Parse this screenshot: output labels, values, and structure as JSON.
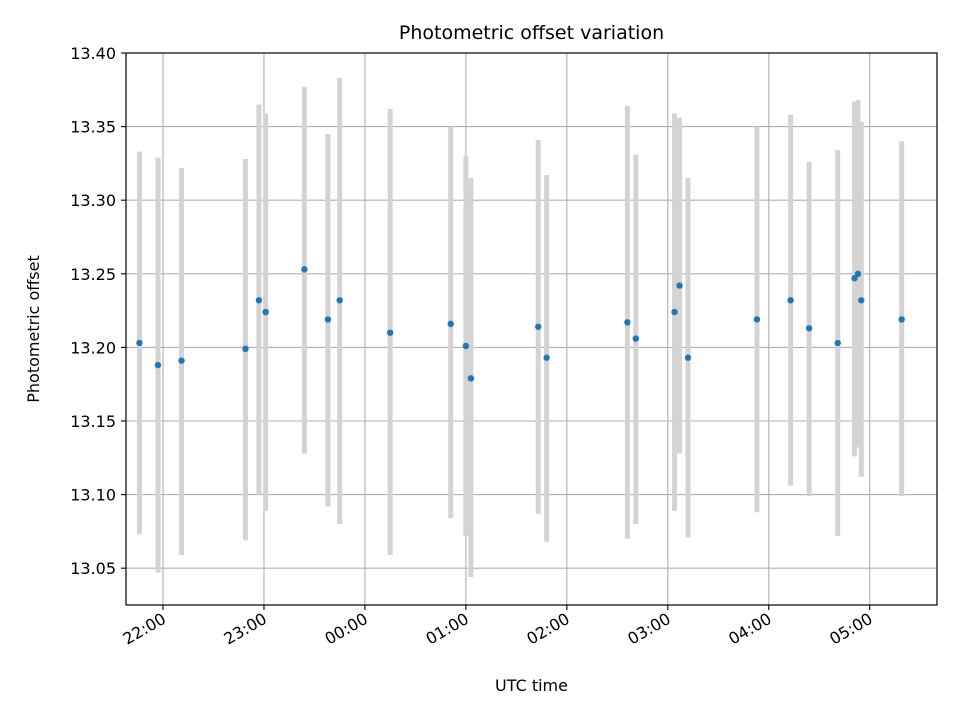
{
  "chart_data": {
    "type": "scatter",
    "title": "Photometric offset variation",
    "xlabel": "UTC time",
    "ylabel": "Photometric offset",
    "x_is_time": true,
    "xlim": [
      "21:38",
      "05:40"
    ],
    "ylim": [
      13.025,
      13.4
    ],
    "xticks": [
      "22:00",
      "23:00",
      "00:00",
      "01:00",
      "02:00",
      "03:00",
      "04:00",
      "05:00"
    ],
    "yticks": [
      "13.05",
      "13.10",
      "13.15",
      "13.20",
      "13.25",
      "13.30",
      "13.35",
      "13.40"
    ],
    "grid": true,
    "colors": {
      "point": "#1f77b4",
      "errorbar": "#d3d3d3",
      "grid": "#b0b0b0"
    },
    "points": [
      {
        "x": "21:46",
        "y": 13.203,
        "lo": 13.073,
        "hi": 13.333
      },
      {
        "x": "21:57",
        "y": 13.188,
        "lo": 13.047,
        "hi": 13.329
      },
      {
        "x": "22:11",
        "y": 13.191,
        "lo": 13.059,
        "hi": 13.322
      },
      {
        "x": "22:49",
        "y": 13.199,
        "lo": 13.069,
        "hi": 13.328
      },
      {
        "x": "22:57",
        "y": 13.232,
        "lo": 13.1,
        "hi": 13.365
      },
      {
        "x": "23:01",
        "y": 13.224,
        "lo": 13.089,
        "hi": 13.359
      },
      {
        "x": "23:24",
        "y": 13.253,
        "lo": 13.128,
        "hi": 13.377
      },
      {
        "x": "23:38",
        "y": 13.219,
        "lo": 13.092,
        "hi": 13.345
      },
      {
        "x": "23:45",
        "y": 13.232,
        "lo": 13.08,
        "hi": 13.383
      },
      {
        "x": "00:15",
        "y": 13.21,
        "lo": 13.059,
        "hi": 13.362
      },
      {
        "x": "00:51",
        "y": 13.216,
        "lo": 13.084,
        "hi": 13.35
      },
      {
        "x": "01:00",
        "y": 13.201,
        "lo": 13.072,
        "hi": 13.33
      },
      {
        "x": "01:03",
        "y": 13.179,
        "lo": 13.044,
        "hi": 13.315
      },
      {
        "x": "01:43",
        "y": 13.214,
        "lo": 13.087,
        "hi": 13.341
      },
      {
        "x": "01:48",
        "y": 13.193,
        "lo": 13.068,
        "hi": 13.317
      },
      {
        "x": "02:36",
        "y": 13.217,
        "lo": 13.07,
        "hi": 13.364
      },
      {
        "x": "02:41",
        "y": 13.206,
        "lo": 13.08,
        "hi": 13.331
      },
      {
        "x": "03:04",
        "y": 13.224,
        "lo": 13.089,
        "hi": 13.359
      },
      {
        "x": "03:07",
        "y": 13.242,
        "lo": 13.128,
        "hi": 13.356
      },
      {
        "x": "03:12",
        "y": 13.193,
        "lo": 13.071,
        "hi": 13.315
      },
      {
        "x": "03:53",
        "y": 13.219,
        "lo": 13.088,
        "hi": 13.35
      },
      {
        "x": "04:13",
        "y": 13.232,
        "lo": 13.106,
        "hi": 13.358
      },
      {
        "x": "04:24",
        "y": 13.213,
        "lo": 13.099,
        "hi": 13.326
      },
      {
        "x": "04:41",
        "y": 13.203,
        "lo": 13.072,
        "hi": 13.334
      },
      {
        "x": "04:51",
        "y": 13.247,
        "lo": 13.126,
        "hi": 13.367
      },
      {
        "x": "04:53",
        "y": 13.25,
        "lo": 13.132,
        "hi": 13.368
      },
      {
        "x": "04:55",
        "y": 13.232,
        "lo": 13.112,
        "hi": 13.353
      },
      {
        "x": "05:19",
        "y": 13.219,
        "lo": 13.099,
        "hi": 13.34
      }
    ]
  }
}
